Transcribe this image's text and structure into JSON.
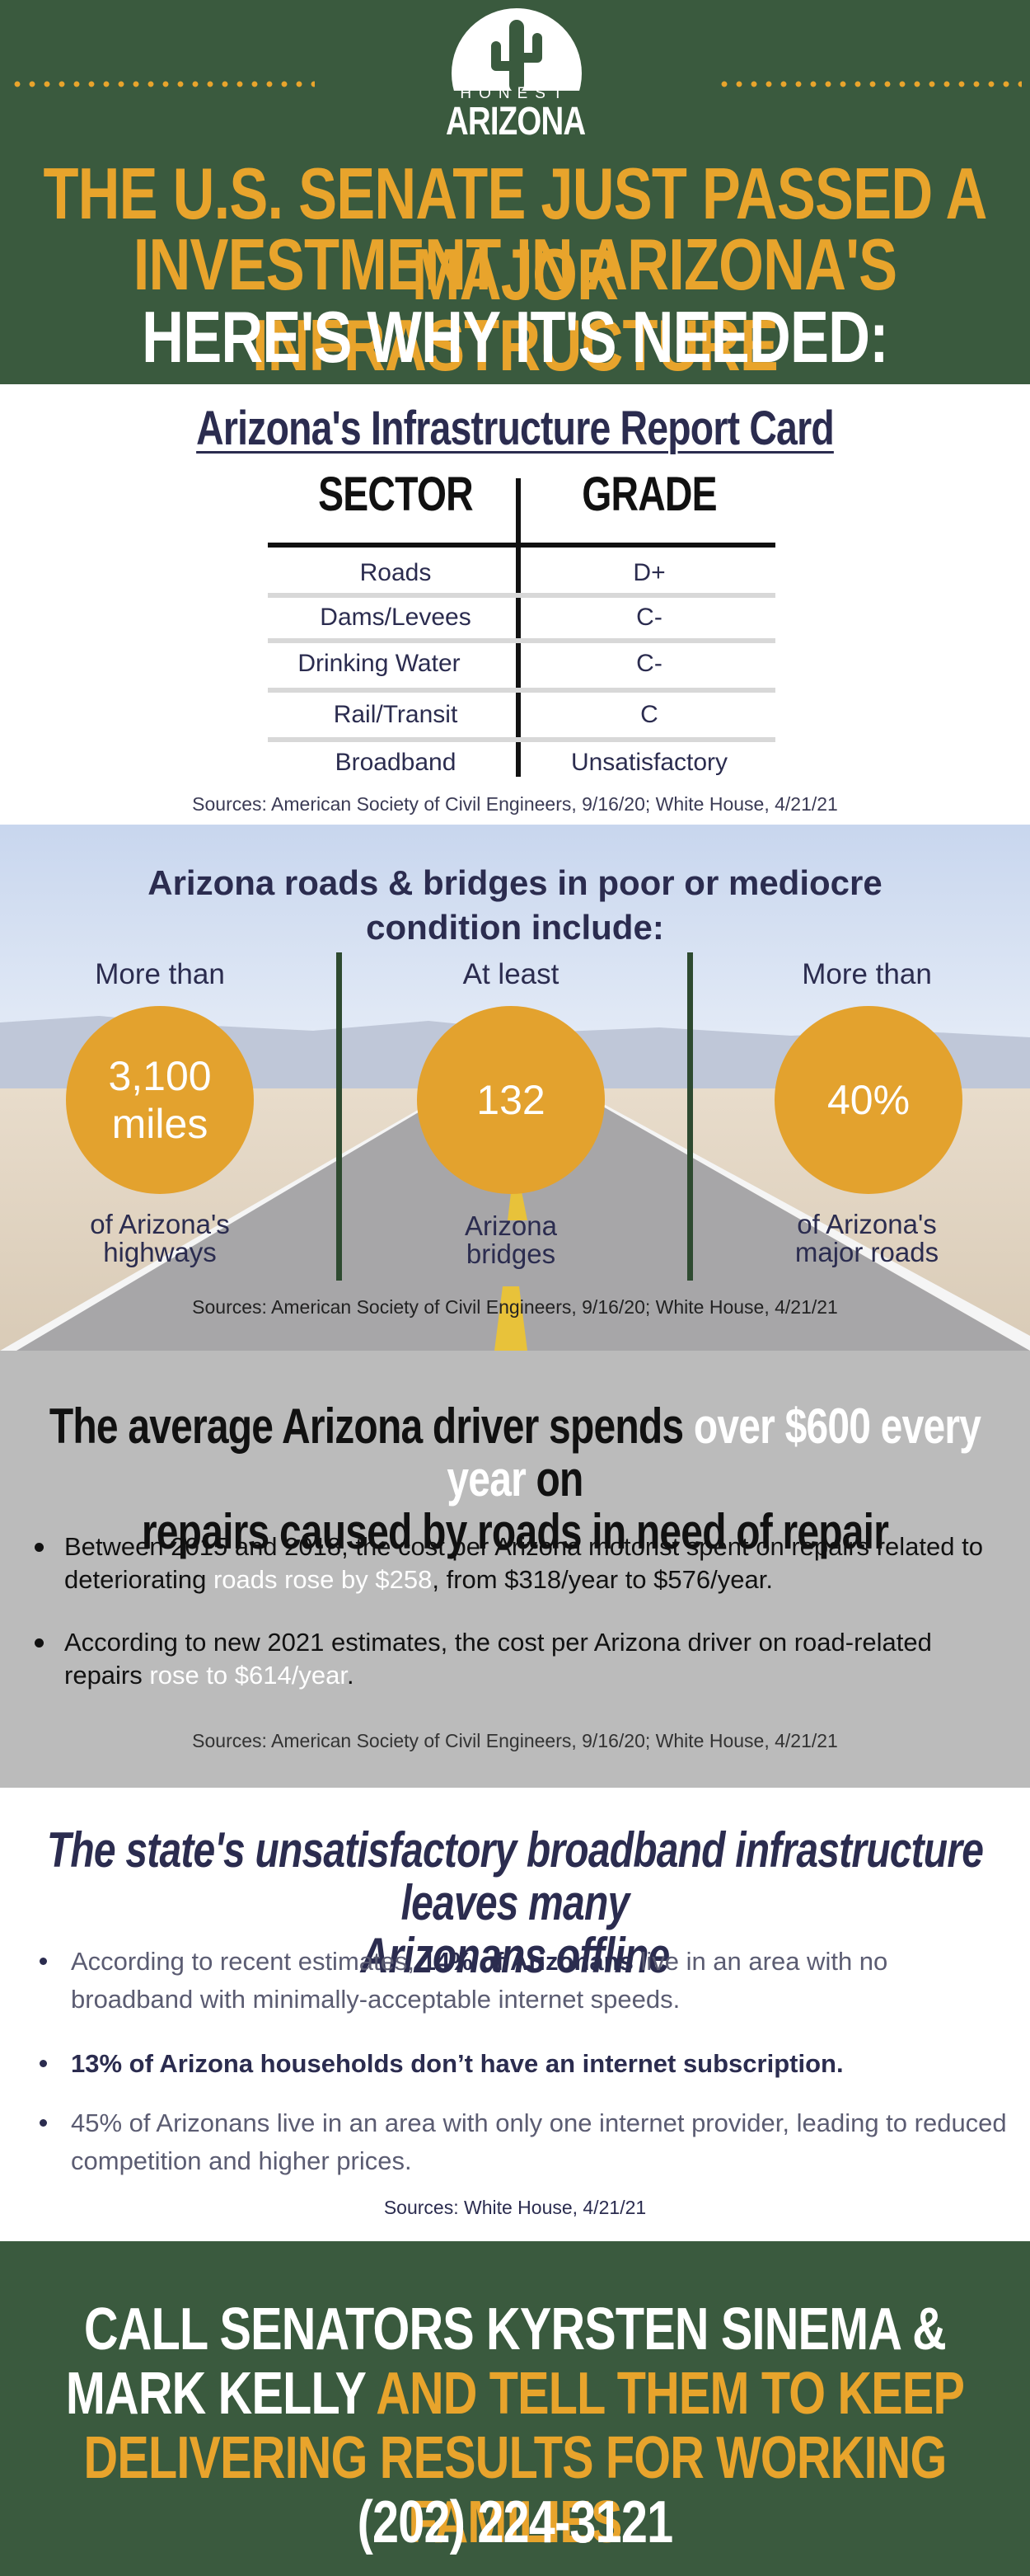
{
  "header": {
    "logo": {
      "top": "HONEST",
      "bottom": "ARIZONA",
      "icon": "cactus-icon"
    },
    "headline_line1": "THE U.S. SENATE JUST PASSED A MAJOR",
    "headline_line2": "INVESTMENT IN ARIZONA'S INFRASTRUCTURE",
    "headline_line3": "HERE'S WHY IT'S NEEDED:"
  },
  "report_card": {
    "title": "Arizona's Infrastructure Report Card",
    "col_sector": "SECTOR",
    "col_grade": "GRADE",
    "rows": [
      {
        "sector": "Roads",
        "grade": "D+"
      },
      {
        "sector": "Dams/Levees",
        "grade": "C-"
      },
      {
        "sector": "Drinking Water",
        "grade": "C-"
      },
      {
        "sector": "Rail/Transit",
        "grade": "C"
      },
      {
        "sector": "Broadband",
        "grade": "Unsatisfactory"
      }
    ],
    "source": "Sources: American Society of Civil Engineers, 9/16/20; White House, 4/21/21"
  },
  "roads": {
    "title_line1": "Arizona roads & bridges in poor or mediocre",
    "title_line2": "condition include:",
    "stats": [
      {
        "top": "More than",
        "value_line1": "3,100",
        "value_line2": "miles",
        "bottom_line1": "of Arizona's",
        "bottom_line2": "highways"
      },
      {
        "top": "At least",
        "value_line1": "132",
        "value_line2": "",
        "bottom_line1": "Arizona",
        "bottom_line2": "bridges"
      },
      {
        "top": "More than",
        "value_line1": "40%",
        "value_line2": "",
        "bottom_line1": "of Arizona's",
        "bottom_line2": "major roads"
      }
    ],
    "source": "Sources: American Society of Civil Engineers, 9/16/20; White House, 4/21/21"
  },
  "driver": {
    "title_a": "The average Arizona driver spends ",
    "title_highlight": "over $600 every year",
    "title_b": " on",
    "title_line2": "repairs caused by roads in need of repair",
    "bullet1_a": "Between 2015 and 2018, the cost per Arizona motorist spent on repairs related to deteriorating ",
    "bullet1_highlight": "roads rose by $258",
    "bullet1_b": ", from $318/year to $576/year.",
    "bullet2_a": "According to new 2021 estimates, the cost per Arizona driver on road-related repairs ",
    "bullet2_highlight": "rose to $614/year",
    "bullet2_b": ".",
    "source": "Sources: American Society of Civil Engineers, 9/16/20; White House, 4/21/21"
  },
  "broadband": {
    "title_line1": "The state's unsatisfactory broadband infrastructure leaves many",
    "title_line2": "Arizonans offline",
    "bullet1_a": "According to recent estimates, ",
    "bullet1_strong": "14% of Arizonans",
    "bullet1_b": " live in an area with no broadband with minimally-acceptable internet speeds.",
    "bullet2_strong": "13% of Arizona households don’t have an internet subscription",
    "bullet2_b": ".",
    "bullet3": "45% of Arizonans live in an area with only one internet provider, leading to reduced competition and higher prices.",
    "source": "Sources: White House, 4/21/21"
  },
  "footer": {
    "line1": "CALL SENATORS KYRSTEN SINEMA &",
    "line2_white": "MARK KELLY ",
    "line2_orange": "AND TELL THEM TO KEEP",
    "line3": "DELIVERING RESULTS FOR WORKING FAMILIES",
    "phone": "(202) 224-3121"
  },
  "colors": {
    "green": "#3a5a3e",
    "orange": "#e8a42c",
    "navy": "#2b2c4f",
    "gray": "#bbbbbb"
  }
}
